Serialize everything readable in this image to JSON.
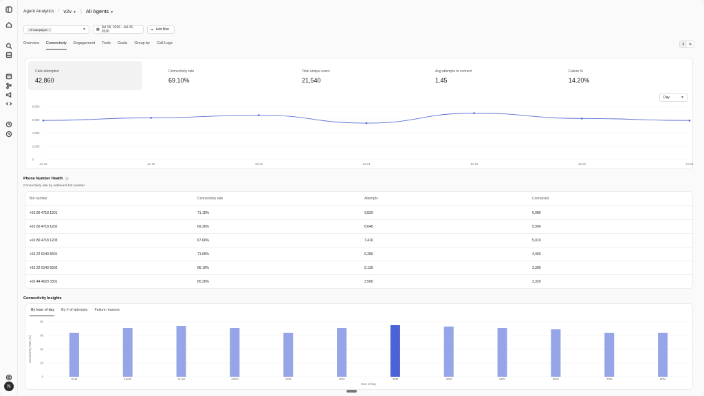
{
  "header": {
    "section": "Agent Analytics",
    "version": "v2v",
    "agents": "All Agents"
  },
  "filters": {
    "campaign_chip": "All Campaigns",
    "date_range": "Jul 18, 2026 - Jul 24, 2026",
    "add_filter": "Add filter"
  },
  "tabs": [
    "Overview",
    "Connectivity",
    "Engagement",
    "Tools",
    "Goals",
    "Group by",
    "Call Logs"
  ],
  "active_tab": "Connectivity",
  "view_toggle": [
    "#",
    "%"
  ],
  "metrics": [
    {
      "label": "Calls attempted",
      "value": "42,860"
    },
    {
      "label": "Connectivity rate",
      "value": "69.10%"
    },
    {
      "label": "Total unique users",
      "value": "21,540"
    },
    {
      "label": "Avg attempts to connect",
      "value": "1.45"
    },
    {
      "label": "Failure %",
      "value": "14.20%"
    }
  ],
  "granularity": "Day",
  "chart_data": [
    {
      "type": "line",
      "x": [
        "Jul 18",
        "Jul 19",
        "Jul 20",
        "Jul 21",
        "Jul 22",
        "Jul 23",
        "Jul 24"
      ],
      "series": [
        {
          "values": [
            5900,
            6300,
            6700,
            5500,
            7000,
            6200,
            5900
          ]
        }
      ],
      "y_ticks": [
        "8,000",
        "6,000",
        "4,000",
        "2,000",
        "0"
      ],
      "ylim": [
        0,
        8000
      ],
      "color": "#5a6fd6",
      "grid": true
    },
    {
      "type": "bar",
      "categories": [
        "9AM",
        "10AM",
        "11AM",
        "12PM",
        "1PM",
        "2PM",
        "3PM",
        "4PM",
        "5PM",
        "6PM",
        "7PM",
        "8PM"
      ],
      "values": [
        64,
        71,
        74,
        71,
        64,
        71,
        75,
        73,
        71,
        69,
        64,
        64
      ],
      "highlight_index": 6,
      "y_ticks": [
        "80",
        "60",
        "40",
        "20",
        "0"
      ],
      "ylim": [
        0,
        80
      ],
      "ylabel": "Connectivity Rate (%)",
      "xlabel": "Hour of Day",
      "bar_color": "#96a5e8",
      "highlight_color": "#4b63d4",
      "grid": true
    }
  ],
  "phone_health": {
    "title": "Phone Number Health",
    "info": "?",
    "subtitle": "Connectivity rate by outbound bot number",
    "columns": [
      "Bot number",
      "Connectivity rate",
      "Attempts",
      "Connected"
    ],
    "rows": [
      [
        "+91 80 4718 1201",
        "71.15%",
        "9,820",
        "6,980"
      ],
      [
        "+91 80 4718 1202",
        "69.30%",
        "8,640",
        "5,990"
      ],
      [
        "+91 80 4718 1203",
        "67.60%",
        "7,410",
        "5,010"
      ],
      [
        "+91 22 6140 5501",
        "71.00%",
        "6,280",
        "4,460"
      ],
      [
        "+91 22 6140 5502",
        "66.10%",
        "5,130",
        "3,390"
      ],
      [
        "+91 44 4020 3301",
        "65.20%",
        "3,560",
        "2,320"
      ]
    ]
  },
  "insights": {
    "title": "Connectivity Insights",
    "tabs": [
      "By hour of day",
      "By # of attempts",
      "Failure reasons"
    ],
    "active_tab": "By hour of day"
  },
  "user_initial": "N"
}
